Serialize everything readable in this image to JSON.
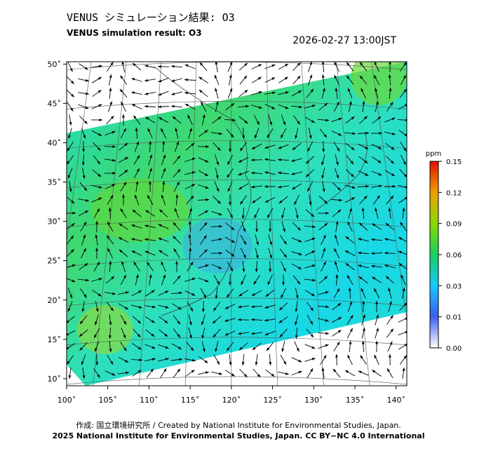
{
  "header": {
    "title": "VENUS シミュレーション結果: O3",
    "subtitle": "VENUS simulation result: O3",
    "timestamp": "2026-02-27 13:00JST"
  },
  "map": {
    "lon_range": [
      100,
      141.3
    ],
    "lat_range": [
      9.1,
      50.3
    ],
    "lon_ticks": [
      {
        "value": 100,
        "label": "100˚"
      },
      {
        "value": 105,
        "label": "105˚"
      },
      {
        "value": 110,
        "label": "110˚"
      },
      {
        "value": 115,
        "label": "115˚"
      },
      {
        "value": 120,
        "label": "120˚"
      },
      {
        "value": 125,
        "label": "125˚"
      },
      {
        "value": 130,
        "label": "130˚"
      },
      {
        "value": 135,
        "label": "135˚"
      },
      {
        "value": 140,
        "label": "140˚"
      }
    ],
    "lat_ticks": [
      {
        "value": 10,
        "label": "10˚"
      },
      {
        "value": 15,
        "label": "15˚"
      },
      {
        "value": 20,
        "label": "20˚"
      },
      {
        "value": 25,
        "label": "25˚"
      },
      {
        "value": 30,
        "label": "30˚"
      },
      {
        "value": 35,
        "label": "35˚"
      },
      {
        "value": 40,
        "label": "40˚"
      },
      {
        "value": 45,
        "label": "45˚"
      },
      {
        "value": 50,
        "label": "50˚"
      }
    ]
  },
  "colorbar": {
    "unit": "ppm",
    "ticks": [
      {
        "value": 0,
        "label": "0.00"
      },
      0.01,
      0.03,
      0.06,
      0.09,
      0.12,
      0.15
    ]
  },
  "footer": {
    "credit": "作成: 国立環境研究所 / Created by National Institute for Environmental Studies, Japan.",
    "license": "2025 National Institute for Environmental Studies, Japan. CC BY−NC 4.0 International"
  }
}
